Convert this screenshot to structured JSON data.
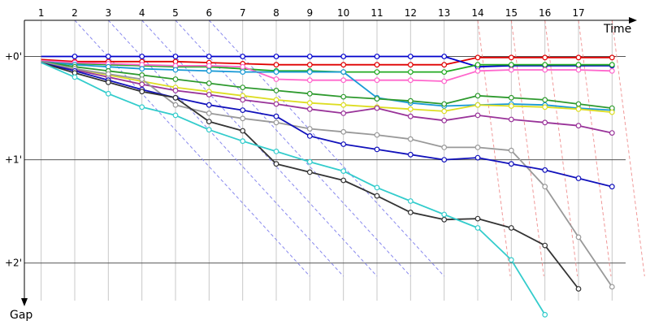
{
  "chart_data": {
    "type": "line",
    "xlabel": "Time",
    "ylabel": "Gap",
    "x_ticks": [
      "1",
      "2",
      "3",
      "4",
      "5",
      "6",
      "7",
      "8",
      "9",
      "10",
      "11",
      "12",
      "13",
      "14",
      "15",
      "16",
      "17"
    ],
    "y_ticks": [
      {
        "value": 0,
        "label": "+0'"
      },
      {
        "value": 1,
        "label": "+1'"
      },
      {
        "value": 2,
        "label": "+2'"
      }
    ],
    "xlim": [
      0.5,
      18.5
    ],
    "ylim": [
      -0.35,
      2.6
    ],
    "grid": true,
    "series": [
      {
        "color": "#e00000",
        "points": [
          [
            1,
            0.03
          ],
          [
            2,
            0.05
          ],
          [
            3,
            0.05
          ],
          [
            4,
            0.05
          ],
          [
            5,
            0.05
          ],
          [
            6,
            0.06
          ],
          [
            7,
            0.07
          ],
          [
            8,
            0.08
          ],
          [
            9,
            0.08
          ],
          [
            10,
            0.08
          ],
          [
            11,
            0.08
          ],
          [
            12,
            0.08
          ],
          [
            13,
            0.08
          ],
          [
            14,
            0.01
          ],
          [
            15,
            0.01
          ],
          [
            16,
            0.01
          ],
          [
            17,
            0.01
          ],
          [
            18,
            0.01
          ]
        ]
      },
      {
        "color": "#0000cc",
        "points": [
          [
            1,
            0.0
          ],
          [
            2,
            0.0
          ],
          [
            3,
            0.0
          ],
          [
            4,
            0.0
          ],
          [
            5,
            0.0
          ],
          [
            6,
            0.0
          ],
          [
            7,
            0.0
          ],
          [
            8,
            0.0
          ],
          [
            9,
            0.0
          ],
          [
            10,
            0.0
          ],
          [
            11,
            0.0
          ],
          [
            12,
            0.0
          ],
          [
            13,
            0.0
          ],
          [
            14,
            0.1
          ],
          [
            15,
            0.09
          ],
          [
            16,
            0.09
          ],
          [
            17,
            0.09
          ],
          [
            18,
            0.09
          ]
        ]
      },
      {
        "color": "#22aa22",
        "points": [
          [
            1,
            0.04
          ],
          [
            2,
            0.07
          ],
          [
            3,
            0.08
          ],
          [
            4,
            0.09
          ],
          [
            5,
            0.1
          ],
          [
            6,
            0.1
          ],
          [
            7,
            0.12
          ],
          [
            8,
            0.14
          ],
          [
            9,
            0.14
          ],
          [
            10,
            0.15
          ],
          [
            11,
            0.15
          ],
          [
            12,
            0.15
          ],
          [
            13,
            0.15
          ],
          [
            14,
            0.08
          ],
          [
            15,
            0.08
          ],
          [
            16,
            0.08
          ],
          [
            17,
            0.08
          ],
          [
            18,
            0.08
          ]
        ]
      },
      {
        "color": "#ff66cc",
        "points": [
          [
            1,
            0.04
          ],
          [
            2,
            0.06
          ],
          [
            3,
            0.07
          ],
          [
            4,
            0.08
          ],
          [
            5,
            0.09
          ],
          [
            6,
            0.09
          ],
          [
            7,
            0.1
          ],
          [
            8,
            0.22
          ],
          [
            9,
            0.23
          ],
          [
            10,
            0.23
          ],
          [
            11,
            0.23
          ],
          [
            12,
            0.23
          ],
          [
            13,
            0.24
          ],
          [
            14,
            0.14
          ],
          [
            15,
            0.13
          ],
          [
            16,
            0.13
          ],
          [
            17,
            0.13
          ],
          [
            18,
            0.14
          ]
        ]
      },
      {
        "color": "#1a9ad6",
        "points": [
          [
            1,
            0.05
          ],
          [
            2,
            0.08
          ],
          [
            3,
            0.1
          ],
          [
            4,
            0.12
          ],
          [
            5,
            0.13
          ],
          [
            6,
            0.14
          ],
          [
            7,
            0.15
          ],
          [
            8,
            0.15
          ],
          [
            9,
            0.15
          ],
          [
            10,
            0.15
          ],
          [
            11,
            0.4
          ],
          [
            12,
            0.45
          ],
          [
            13,
            0.48
          ],
          [
            14,
            0.47
          ],
          [
            15,
            0.46
          ],
          [
            16,
            0.47
          ],
          [
            17,
            0.5
          ],
          [
            18,
            0.52
          ]
        ]
      },
      {
        "color": "#2e9a2e",
        "points": [
          [
            1,
            0.05
          ],
          [
            2,
            0.1
          ],
          [
            3,
            0.14
          ],
          [
            4,
            0.18
          ],
          [
            5,
            0.22
          ],
          [
            6,
            0.26
          ],
          [
            7,
            0.3
          ],
          [
            8,
            0.33
          ],
          [
            9,
            0.36
          ],
          [
            10,
            0.39
          ],
          [
            11,
            0.41
          ],
          [
            12,
            0.43
          ],
          [
            13,
            0.46
          ],
          [
            14,
            0.38
          ],
          [
            15,
            0.4
          ],
          [
            16,
            0.42
          ],
          [
            17,
            0.46
          ],
          [
            18,
            0.5
          ]
        ]
      },
      {
        "color": "#dddd22",
        "points": [
          [
            1,
            0.06
          ],
          [
            2,
            0.12
          ],
          [
            3,
            0.18
          ],
          [
            4,
            0.24
          ],
          [
            5,
            0.3
          ],
          [
            6,
            0.34
          ],
          [
            7,
            0.38
          ],
          [
            8,
            0.42
          ],
          [
            9,
            0.45
          ],
          [
            10,
            0.47
          ],
          [
            11,
            0.49
          ],
          [
            12,
            0.51
          ],
          [
            13,
            0.53
          ],
          [
            14,
            0.47
          ],
          [
            15,
            0.48
          ],
          [
            16,
            0.49
          ],
          [
            17,
            0.51
          ],
          [
            18,
            0.54
          ]
        ]
      },
      {
        "color": "#993399",
        "points": [
          [
            1,
            0.06
          ],
          [
            2,
            0.13
          ],
          [
            3,
            0.2
          ],
          [
            4,
            0.27
          ],
          [
            5,
            0.33
          ],
          [
            6,
            0.37
          ],
          [
            7,
            0.42
          ],
          [
            8,
            0.46
          ],
          [
            9,
            0.51
          ],
          [
            10,
            0.55
          ],
          [
            11,
            0.5
          ],
          [
            12,
            0.58
          ],
          [
            13,
            0.62
          ],
          [
            14,
            0.57
          ],
          [
            15,
            0.61
          ],
          [
            16,
            0.64
          ],
          [
            17,
            0.67
          ],
          [
            18,
            0.74
          ]
        ]
      },
      {
        "color": "#999999",
        "points": [
          [
            1,
            0.05
          ],
          [
            2,
            0.12
          ],
          [
            3,
            0.17
          ],
          [
            4,
            0.22
          ],
          [
            5,
            0.47
          ],
          [
            6,
            0.55
          ],
          [
            7,
            0.6
          ],
          [
            8,
            0.64
          ],
          [
            9,
            0.7
          ],
          [
            10,
            0.73
          ],
          [
            11,
            0.76
          ],
          [
            12,
            0.8
          ],
          [
            13,
            0.88
          ],
          [
            14,
            0.88
          ],
          [
            15,
            0.91
          ],
          [
            16,
            1.26
          ],
          [
            17,
            1.75
          ],
          [
            18,
            2.23
          ]
        ]
      },
      {
        "color": "#1111bb",
        "points": [
          [
            1,
            0.06
          ],
          [
            2,
            0.14
          ],
          [
            3,
            0.23
          ],
          [
            4,
            0.32
          ],
          [
            5,
            0.4
          ],
          [
            6,
            0.47
          ],
          [
            7,
            0.52
          ],
          [
            8,
            0.58
          ],
          [
            9,
            0.77
          ],
          [
            10,
            0.85
          ],
          [
            11,
            0.9
          ],
          [
            12,
            0.95
          ],
          [
            13,
            1.0
          ],
          [
            14,
            0.98
          ],
          [
            15,
            1.04
          ],
          [
            16,
            1.1
          ],
          [
            17,
            1.18
          ],
          [
            18,
            1.26
          ]
        ]
      },
      {
        "color": "#333333",
        "points": [
          [
            1,
            0.06
          ],
          [
            2,
            0.16
          ],
          [
            3,
            0.25
          ],
          [
            4,
            0.34
          ],
          [
            5,
            0.4
          ],
          [
            6,
            0.63
          ],
          [
            7,
            0.72
          ],
          [
            8,
            1.04
          ],
          [
            9,
            1.12
          ],
          [
            10,
            1.2
          ],
          [
            11,
            1.35
          ],
          [
            12,
            1.51
          ],
          [
            13,
            1.58
          ],
          [
            14,
            1.57
          ],
          [
            15,
            1.66
          ],
          [
            16,
            1.83
          ],
          [
            17,
            2.25
          ]
        ]
      },
      {
        "color": "#33cccc",
        "points": [
          [
            1,
            0.06
          ],
          [
            2,
            0.2
          ],
          [
            3,
            0.36
          ],
          [
            4,
            0.49
          ],
          [
            5,
            0.57
          ],
          [
            6,
            0.71
          ],
          [
            7,
            0.82
          ],
          [
            8,
            0.92
          ],
          [
            9,
            1.02
          ],
          [
            10,
            1.11
          ],
          [
            11,
            1.27
          ],
          [
            12,
            1.4
          ],
          [
            13,
            1.53
          ],
          [
            14,
            1.66
          ],
          [
            15,
            1.97
          ],
          [
            16,
            2.5
          ]
        ]
      }
    ],
    "lap_connectors": [
      {
        "color": "#8888ee",
        "from_x": 2,
        "to_x": 9
      },
      {
        "color": "#8888ee",
        "from_x": 3,
        "to_x": 10
      },
      {
        "color": "#8888ee",
        "from_x": 4,
        "to_x": 11
      },
      {
        "color": "#8888ee",
        "from_x": 5,
        "to_x": 12
      },
      {
        "color": "#8888ee",
        "from_x": 6,
        "to_x": 13
      },
      {
        "color": "#f09999",
        "from_x": 14,
        "to_x": 14
      },
      {
        "color": "#f09999",
        "from_x": 15,
        "to_x": 15
      },
      {
        "color": "#f09999",
        "from_x": 16,
        "to_x": 16
      },
      {
        "color": "#f09999",
        "from_x": 17,
        "to_x": 17
      },
      {
        "color": "#f09999",
        "from_x": 18,
        "to_x": 18
      }
    ]
  }
}
